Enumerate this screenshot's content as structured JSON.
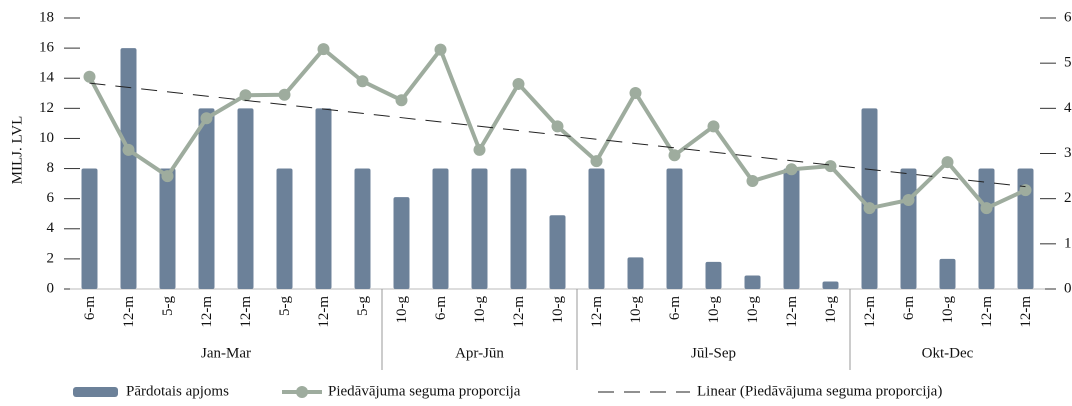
{
  "chart_data": {
    "type": "bar-line",
    "ylabel": "MILJ. LVL",
    "groups": [
      {
        "name": "Jan-Mar",
        "categories": [
          "6-m",
          "12-m",
          "5-g",
          "12-m",
          "12-m",
          "5-g",
          "12-m",
          "5-g"
        ]
      },
      {
        "name": "Apr-Jūn",
        "categories": [
          "10-g",
          "6-m",
          "10-g",
          "12-m",
          "10-g"
        ]
      },
      {
        "name": "Jūl-Sep",
        "categories": [
          "12-m",
          "10-g",
          "6-m",
          "10-g",
          "10-g",
          "12-m",
          "10-g"
        ]
      },
      {
        "name": "Okt-Dec",
        "categories": [
          "12-m",
          "6-m",
          "10-g",
          "12-m",
          "12-m"
        ]
      }
    ],
    "series": [
      {
        "name": "Pārdotais apjoms",
        "type": "bar",
        "color": "#6c8199",
        "values": [
          8,
          16,
          8,
          12,
          12,
          8,
          12,
          8,
          6.1,
          8,
          8,
          8,
          4.9,
          8,
          2.1,
          8,
          1.8,
          0.9,
          8,
          0.5,
          12,
          8,
          2,
          8,
          8
        ]
      },
      {
        "name": "Piedāvājuma seguma proporcija",
        "type": "line",
        "axis": "y2",
        "color": "#9eac9e",
        "values": [
          4.7,
          3.08,
          2.5,
          3.78,
          4.29,
          4.3,
          5.31,
          4.6,
          4.18,
          5.3,
          3.08,
          4.54,
          3.6,
          2.83,
          4.34,
          2.96,
          3.6,
          2.39,
          2.65,
          2.72,
          1.79,
          1.97,
          2.81,
          1.79,
          2.19
        ]
      }
    ],
    "trendline": {
      "name": "Linear (Piedāvājuma seguma proporcija)",
      "of_series": 1,
      "kind": "linear",
      "color": "#222222"
    },
    "ylim": [
      0,
      18
    ],
    "yticks": [
      0,
      2,
      4,
      6,
      8,
      10,
      12,
      14,
      16,
      18
    ],
    "y2lim": [
      0,
      6
    ],
    "y2ticks": [
      0,
      1,
      2,
      3,
      4,
      5,
      6
    ]
  }
}
